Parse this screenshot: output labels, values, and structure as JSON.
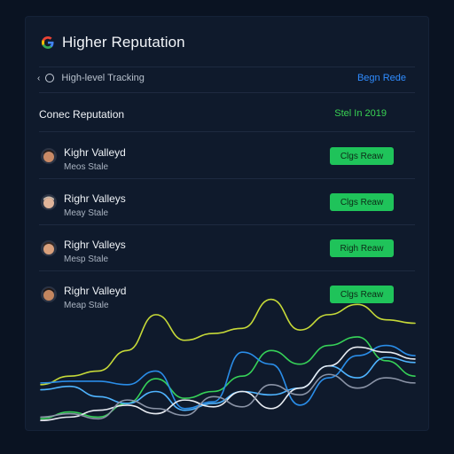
{
  "header": {
    "title": "Higher Reputation",
    "logo_icon": "google-g-icon"
  },
  "tracking": {
    "label": "High-level Tracking",
    "action_link": "Begn Rede"
  },
  "section": {
    "title": "Conec Reputation",
    "right_text": "Stel In 2019"
  },
  "rows": [
    {
      "name": "Kighr Valleyd",
      "sub": "Meos Stale",
      "button": "Clgs Reaw"
    },
    {
      "name": "Righr Valleys",
      "sub": "Meay Stale",
      "button": "Clgs Reaw"
    },
    {
      "name": "Righr Valleys",
      "sub": "Mesp Stale",
      "button": "Righ Reaw"
    },
    {
      "name": "Righr Valleyd",
      "sub": "Meap Stale",
      "button": "Clgs Reaw"
    }
  ],
  "colors": {
    "accent_green": "#1fc35a",
    "link_blue": "#2f8cff",
    "panel": "#0f1a2c",
    "background": "#0a1322"
  },
  "chart_data": {
    "type": "line",
    "x": [
      0,
      1,
      2,
      3,
      4,
      5,
      6,
      7,
      8,
      9,
      10,
      11,
      12,
      13
    ],
    "series": [
      {
        "color": "#36d158",
        "values": [
          8,
          16,
          10,
          26,
          55,
          32,
          40,
          58,
          88,
          72,
          94,
          104,
          76,
          58
        ]
      },
      {
        "color": "#c6d938",
        "values": [
          48,
          58,
          64,
          88,
          130,
          100,
          108,
          114,
          148,
          112,
          130,
          142,
          124,
          120
        ]
      },
      {
        "color": "#2a8de8",
        "values": [
          50,
          52,
          52,
          48,
          64,
          20,
          28,
          86,
          72,
          24,
          56,
          82,
          94,
          82
        ]
      },
      {
        "color": "#4fb4ff",
        "values": [
          42,
          46,
          34,
          26,
          40,
          18,
          26,
          40,
          36,
          44,
          70,
          56,
          80,
          74
        ]
      },
      {
        "color": "#e8ecf2",
        "values": [
          6,
          10,
          18,
          24,
          14,
          30,
          22,
          40,
          20,
          44,
          70,
          92,
          86,
          78
        ]
      },
      {
        "color": "#8a93a6",
        "values": [
          10,
          14,
          8,
          30,
          20,
          12,
          34,
          22,
          48,
          36,
          60,
          44,
          56,
          50
        ]
      }
    ],
    "ylim": [
      0,
      160
    ]
  }
}
